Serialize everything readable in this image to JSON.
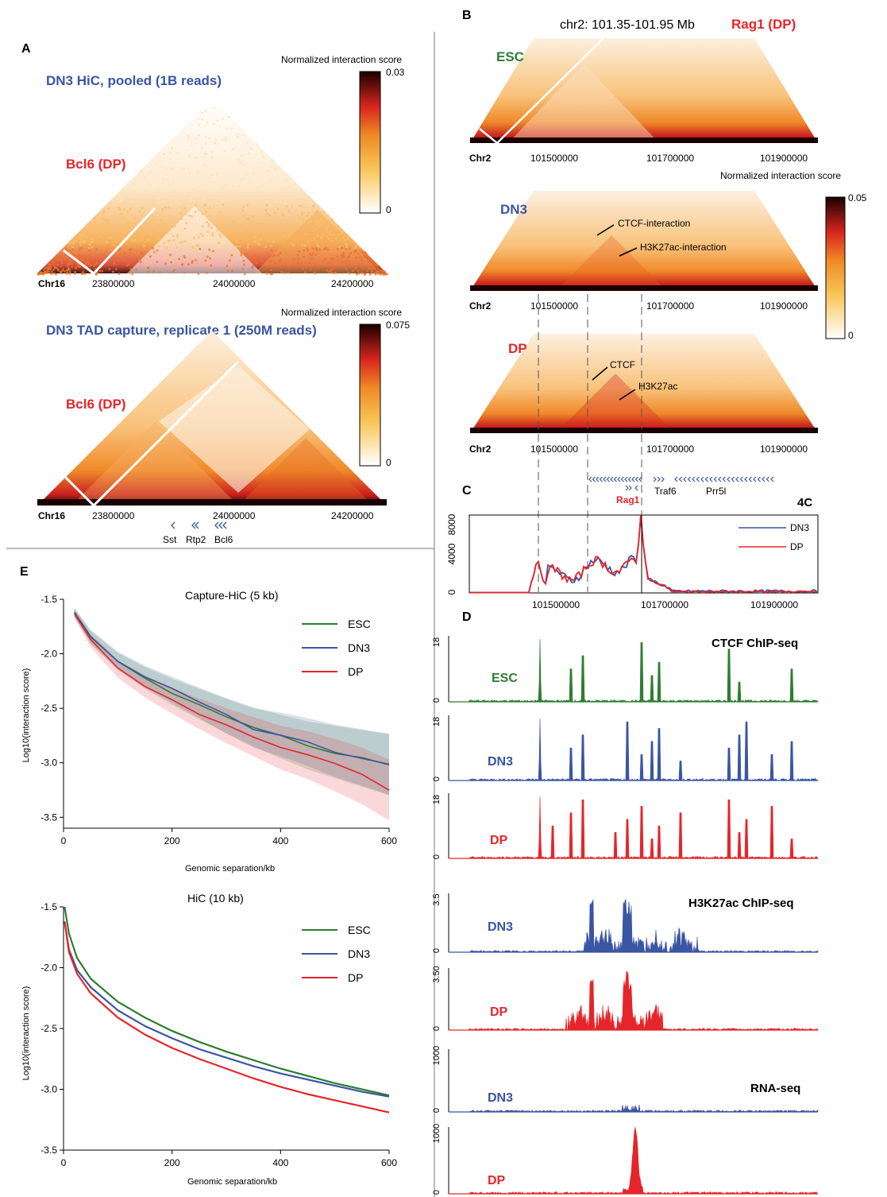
{
  "panels": {
    "A": {
      "letter": "A",
      "hic": {
        "title": "DN3 HiC, pooled (1B reads)",
        "locus": "Bcl6 (DP)",
        "colorbar": {
          "title": "Normalized interaction score",
          "max": "0.03",
          "min": "0"
        },
        "chrom": "Chr16",
        "ticks": [
          "23800000",
          "24000000",
          "24200000"
        ]
      },
      "capture": {
        "title": "DN3 TAD capture, replicate 1 (250M reads)",
        "locus": "Bcl6 (DP)",
        "colorbar": {
          "title": "Normalized interaction score",
          "max": "0.075",
          "min": "0"
        },
        "chrom": "Chr16",
        "ticks": [
          "23800000",
          "24000000",
          "24200000"
        ],
        "genes": [
          "Sst",
          "Rtp2",
          "Bcl6"
        ]
      }
    },
    "B": {
      "letter": "B",
      "region": "chr2: 101.35-101.95 Mb",
      "locus": "Rag1 (DP)",
      "esc": {
        "label": "ESC",
        "chrom": "Chr2",
        "ticks": [
          "101500000",
          "101700000",
          "101900000"
        ]
      },
      "dn3": {
        "label": "DN3",
        "chrom": "Chr2",
        "ticks": [
          "101500000",
          "101700000",
          "101900000"
        ],
        "annot1": "CTCF-interaction",
        "annot2": "H3K27ac-interaction"
      },
      "dp": {
        "label": "DP",
        "chrom": "Chr2",
        "ticks": [
          "101500000",
          "101700000",
          "101900000"
        ],
        "annot1": "CTCF",
        "annot2": "H3K27ac"
      },
      "colorbar": {
        "title": "Normalized interaction score",
        "max": "0.05",
        "min": "0"
      },
      "genes": [
        "Rag1",
        "Traf6",
        "Prr5l"
      ]
    },
    "C": {
      "letter": "C",
      "title": "4C",
      "yticks": [
        "8000",
        "4000",
        "0"
      ],
      "xticks": [
        "101500000",
        "101700000",
        "101900000"
      ],
      "legend": [
        "DN3",
        "DP"
      ]
    },
    "D": {
      "letter": "D",
      "ctcf_title": "CTCF ChIP-seq",
      "h3k_title": "H3K27ac ChIP-seq",
      "rna_title": "RNA-seq",
      "tracks": [
        {
          "label": "ESC",
          "top": "18",
          "bottom": "0"
        },
        {
          "label": "DN3",
          "top": "18",
          "bottom": "0"
        },
        {
          "label": "DP",
          "top": "18",
          "bottom": "0"
        },
        {
          "label": "DN3",
          "top": "3.5",
          "bottom": "0"
        },
        {
          "label": "DP",
          "top": "3.50",
          "bottom": "0"
        },
        {
          "label": "DN3",
          "top": "1000",
          "bottom": "0"
        },
        {
          "label": "DP",
          "top": "1000",
          "bottom": "0"
        }
      ]
    },
    "E": {
      "letter": "E"
    }
  },
  "colors": {
    "esc": "#2e7d32",
    "dn3": "#3a55a3",
    "dp": "#e5252a",
    "tad_dark": "#1a0000"
  },
  "chart_data": [
    {
      "type": "line",
      "title": "Capture-HiC (5 kb)",
      "xlabel": "Genomic separation/kb",
      "ylabel": "Log10(interaction score)",
      "xlim": [
        0,
        600
      ],
      "ylim": [
        -3.6,
        -1.5
      ],
      "xticks": [
        "0",
        "200",
        "400",
        "600"
      ],
      "yticks": [
        "-1.5",
        "-2.0",
        "-2.5",
        "-3.0",
        "-3.5"
      ],
      "x": [
        20,
        50,
        100,
        150,
        200,
        250,
        300,
        350,
        400,
        450,
        500,
        550,
        600
      ],
      "series": [
        {
          "name": "ESC",
          "values": [
            -1.62,
            -1.85,
            -2.07,
            -2.22,
            -2.35,
            -2.46,
            -2.57,
            -2.67,
            -2.76,
            -2.84,
            -2.9,
            -2.96,
            -3.01
          ]
        },
        {
          "name": "DN3",
          "values": [
            -1.62,
            -1.84,
            -2.06,
            -2.21,
            -2.33,
            -2.45,
            -2.57,
            -2.68,
            -2.74,
            -2.81,
            -2.89,
            -2.95,
            -3.02
          ]
        },
        {
          "name": "DP",
          "values": [
            -1.63,
            -1.88,
            -2.14,
            -2.3,
            -2.43,
            -2.55,
            -2.66,
            -2.76,
            -2.86,
            -2.93,
            -3.02,
            -3.12,
            -3.25
          ]
        }
      ]
    },
    {
      "type": "line",
      "title": "HiC (10 kb)",
      "xlabel": "Genomic separation/kb",
      "ylabel": "Log10(interaction score)",
      "xlim": [
        0,
        600
      ],
      "ylim": [
        -3.5,
        -1.5
      ],
      "xticks": [
        "0",
        "200",
        "400",
        "600"
      ],
      "yticks": [
        "-1.5",
        "-2.0",
        "-2.5",
        "-3.0",
        "-3.5"
      ],
      "x": [
        2,
        10,
        25,
        50,
        100,
        150,
        200,
        250,
        300,
        350,
        400,
        450,
        500,
        550,
        600
      ],
      "series": [
        {
          "name": "ESC",
          "values": [
            -1.5,
            -1.72,
            -1.92,
            -2.09,
            -2.28,
            -2.41,
            -2.52,
            -2.61,
            -2.69,
            -2.76,
            -2.83,
            -2.89,
            -2.95,
            -3.0,
            -3.05
          ]
        },
        {
          "name": "DN3",
          "values": [
            -1.62,
            -1.85,
            -2.02,
            -2.16,
            -2.35,
            -2.48,
            -2.58,
            -2.67,
            -2.74,
            -2.81,
            -2.87,
            -2.92,
            -2.97,
            -3.02,
            -3.06
          ]
        },
        {
          "name": "DP",
          "values": [
            -1.62,
            -1.87,
            -2.05,
            -2.21,
            -2.41,
            -2.55,
            -2.66,
            -2.75,
            -2.83,
            -2.91,
            -2.98,
            -3.04,
            -3.09,
            -3.14,
            -3.19
          ]
        }
      ]
    }
  ]
}
